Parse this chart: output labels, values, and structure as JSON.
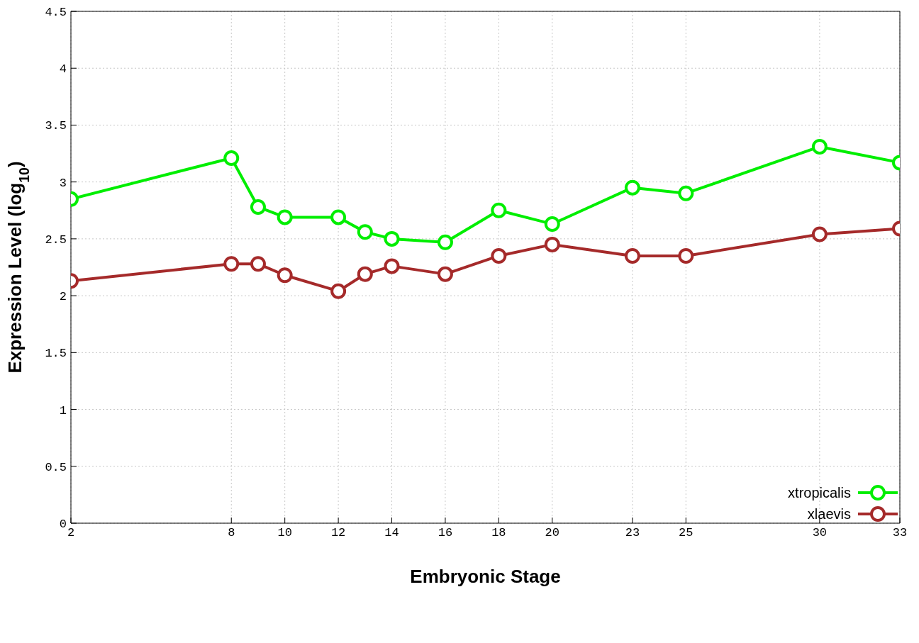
{
  "chart_data": {
    "type": "line",
    "xlabel": "Embryonic Stage",
    "ylabel": "Expression Level (log$_{10}$)",
    "x": [
      2,
      8,
      9,
      10,
      12,
      13,
      14,
      16,
      18,
      20,
      23,
      25,
      30,
      33
    ],
    "series": [
      {
        "name": "xtropicalis",
        "color": "#00ee00",
        "values": [
          2.85,
          3.21,
          2.78,
          2.69,
          2.69,
          2.56,
          2.5,
          2.47,
          2.75,
          2.63,
          2.95,
          2.9,
          3.31,
          3.17
        ]
      },
      {
        "name": "xlaevis",
        "color": "#a52a2a",
        "values": [
          2.13,
          2.28,
          2.28,
          2.18,
          2.04,
          2.19,
          2.26,
          2.19,
          2.35,
          2.45,
          2.35,
          2.35,
          2.54,
          2.59
        ]
      }
    ],
    "xlim": [
      2,
      33
    ],
    "xticks": [
      2,
      8,
      10,
      12,
      14,
      16,
      18,
      20,
      23,
      25,
      30,
      33
    ],
    "ylim": [
      0,
      4.5
    ],
    "yticks": [
      0,
      0.5,
      1,
      1.5,
      2,
      2.5,
      3,
      3.5,
      4,
      4.5
    ],
    "grid": true,
    "legend": "bottom right",
    "marker": "circle",
    "line_style": "solid"
  }
}
